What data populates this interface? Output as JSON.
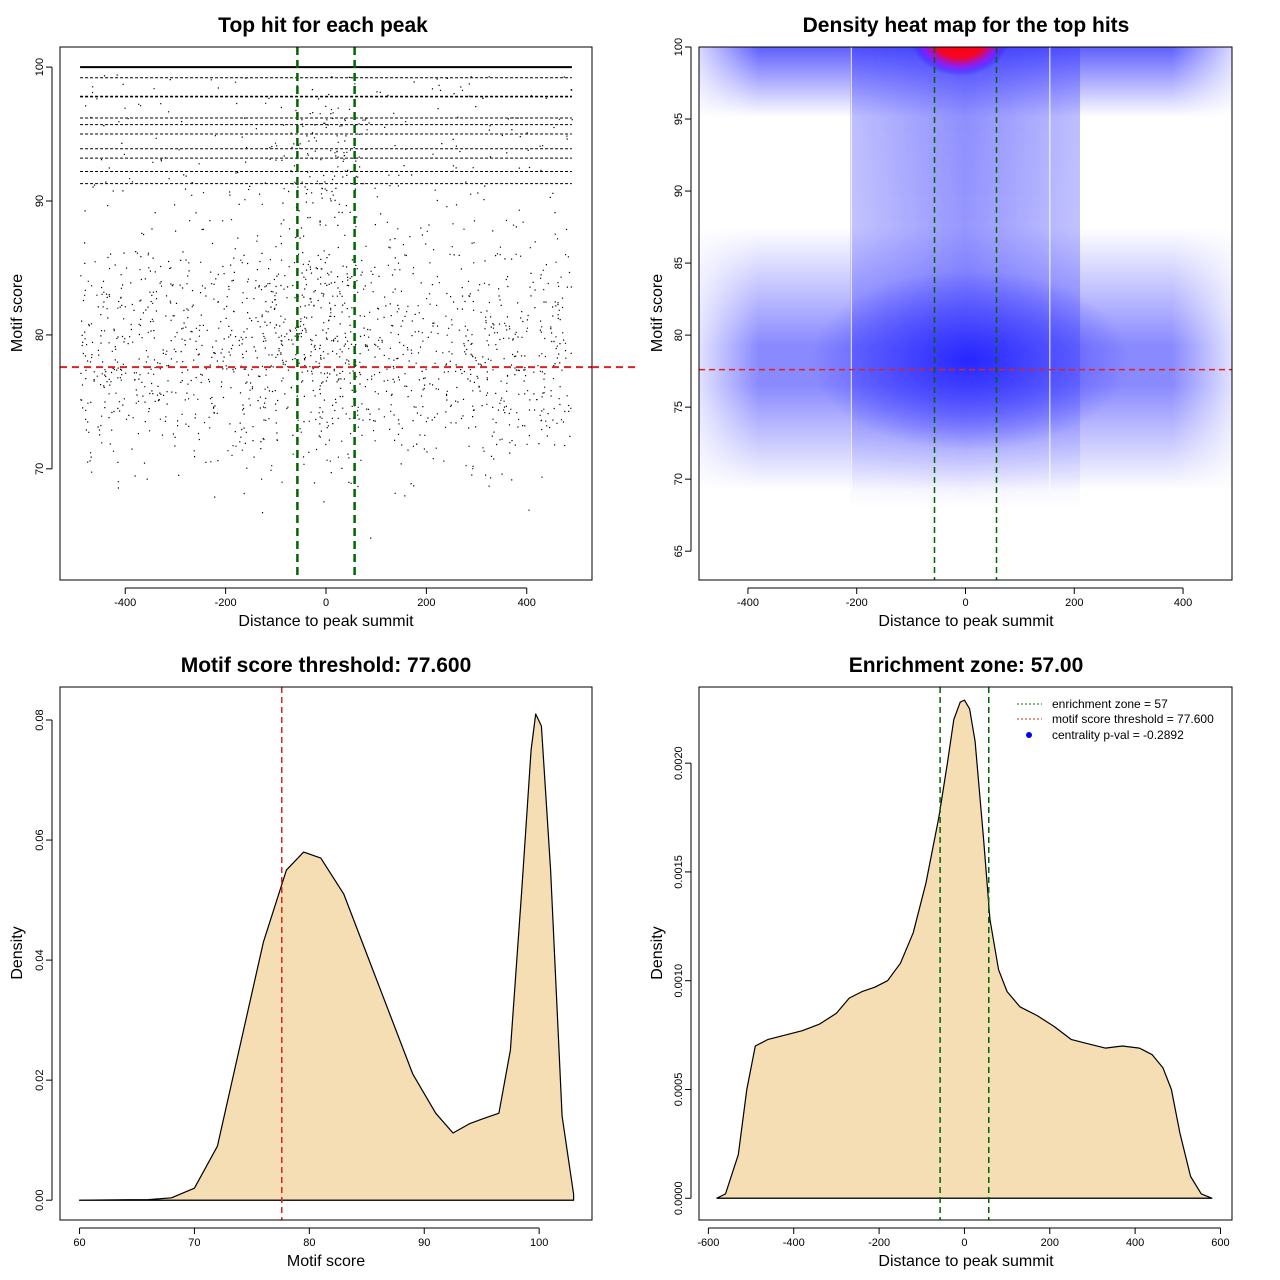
{
  "colors": {
    "threshold": "#dd2222",
    "zone": "#006400",
    "fill": "#f5deb3",
    "heat_low": "#ffffff",
    "heat_mid": "#3333ff",
    "heat_high": "#ff0000",
    "centrality": "#0000ff"
  },
  "chart_data": [
    {
      "id": "scatter",
      "type": "scatter",
      "title": "Top hit for each peak",
      "xlabel": "Distance to peak summit",
      "ylabel": "Motif score",
      "xlim": [
        -530,
        530
      ],
      "ylim": [
        61.7,
        101.5
      ],
      "xticks": [
        -400,
        -200,
        0,
        200,
        400
      ],
      "yticks": [
        70,
        80,
        90,
        100
      ],
      "threshold": 77.6,
      "zone": [
        -57,
        57
      ],
      "x_range": [
        -490,
        490
      ],
      "bands": [
        100,
        99.2,
        97.8,
        96.2,
        95.7,
        95.0,
        93.9,
        93.2,
        92.2,
        91.3
      ],
      "point_count": 17000
    },
    {
      "id": "heat",
      "type": "heatmap",
      "title": "Density heat map for the top hits",
      "xlabel": "Distance to peak summit",
      "ylabel": "Motif score",
      "xlim": [
        -490,
        490
      ],
      "ylim": [
        63,
        100
      ],
      "xticks": [
        -400,
        -200,
        0,
        200,
        400
      ],
      "yticks": [
        65,
        70,
        75,
        80,
        85,
        90,
        95,
        100
      ],
      "threshold": 77.6,
      "zone": [
        -57,
        57
      ],
      "white_lines": [
        -210,
        155
      ]
    },
    {
      "id": "scoredens",
      "type": "area",
      "title": "Motif score threshold: 77.600",
      "xlabel": "Motif score",
      "ylabel": "Density",
      "xlim": [
        58.3,
        104.6
      ],
      "ylim": [
        -0.0033,
        0.0855
      ],
      "xticks": [
        60,
        70,
        80,
        90,
        100
      ],
      "yticks": [
        0.0,
        0.02,
        0.04,
        0.06,
        0.08
      ],
      "ytick_labels": [
        "0.00",
        "0.02",
        "0.04",
        "0.06",
        "0.08"
      ],
      "threshold": 77.6,
      "x": [
        60,
        66,
        68,
        70,
        72,
        74,
        76,
        78,
        79.5,
        81,
        83,
        86,
        89,
        91,
        92.5,
        94,
        95,
        96.5,
        97.5,
        98.5,
        99.3,
        99.7,
        100.2,
        101,
        102,
        103
      ],
      "y": [
        0,
        0.0001,
        0.0004,
        0.002,
        0.009,
        0.026,
        0.043,
        0.055,
        0.058,
        0.057,
        0.051,
        0.036,
        0.021,
        0.0145,
        0.0112,
        0.0128,
        0.0135,
        0.0145,
        0.025,
        0.052,
        0.075,
        0.081,
        0.079,
        0.055,
        0.014,
        0.001
      ]
    },
    {
      "id": "distdens",
      "type": "area",
      "title": "Enrichment zone: 57.00",
      "xlabel": "Distance to peak summit",
      "ylabel": "Density",
      "xlim": [
        -622,
        627
      ],
      "ylim": [
        -0.0001,
        0.00235
      ],
      "xticks": [
        -600,
        -400,
        -200,
        0,
        200,
        400,
        600
      ],
      "yticks": [
        0.0,
        0.0005,
        0.001,
        0.0015,
        0.002
      ],
      "ytick_labels": [
        "0.0000",
        "0.0005",
        "0.0010",
        "0.0015",
        "0.0020"
      ],
      "zone": [
        -57,
        57
      ],
      "x": [
        -580,
        -560,
        -530,
        -510,
        -490,
        -460,
        -420,
        -380,
        -340,
        -300,
        -270,
        -240,
        -210,
        -180,
        -150,
        -120,
        -90,
        -60,
        -40,
        -25,
        -10,
        0,
        12,
        25,
        45,
        60,
        80,
        100,
        130,
        170,
        210,
        250,
        290,
        330,
        370,
        410,
        440,
        465,
        485,
        505,
        530,
        555,
        580
      ],
      "y": [
        0,
        2e-05,
        0.0002,
        0.0005,
        0.0007,
        0.00073,
        0.00075,
        0.00077,
        0.0008,
        0.00085,
        0.00092,
        0.00095,
        0.00097,
        0.001,
        0.00108,
        0.00122,
        0.00145,
        0.00175,
        0.002,
        0.0022,
        0.00228,
        0.00229,
        0.00225,
        0.0021,
        0.00165,
        0.00128,
        0.00105,
        0.00095,
        0.00088,
        0.00084,
        0.00079,
        0.00073,
        0.00071,
        0.00069,
        0.0007,
        0.00069,
        0.00066,
        0.0006,
        0.0005,
        0.0003,
        0.0001,
        2e-05,
        0
      ]
    }
  ],
  "legend": {
    "zone": "enrichment zone = 57",
    "threshold": "motif score threshold = 77.600",
    "pval": "centrality p-val = -0.2892"
  }
}
